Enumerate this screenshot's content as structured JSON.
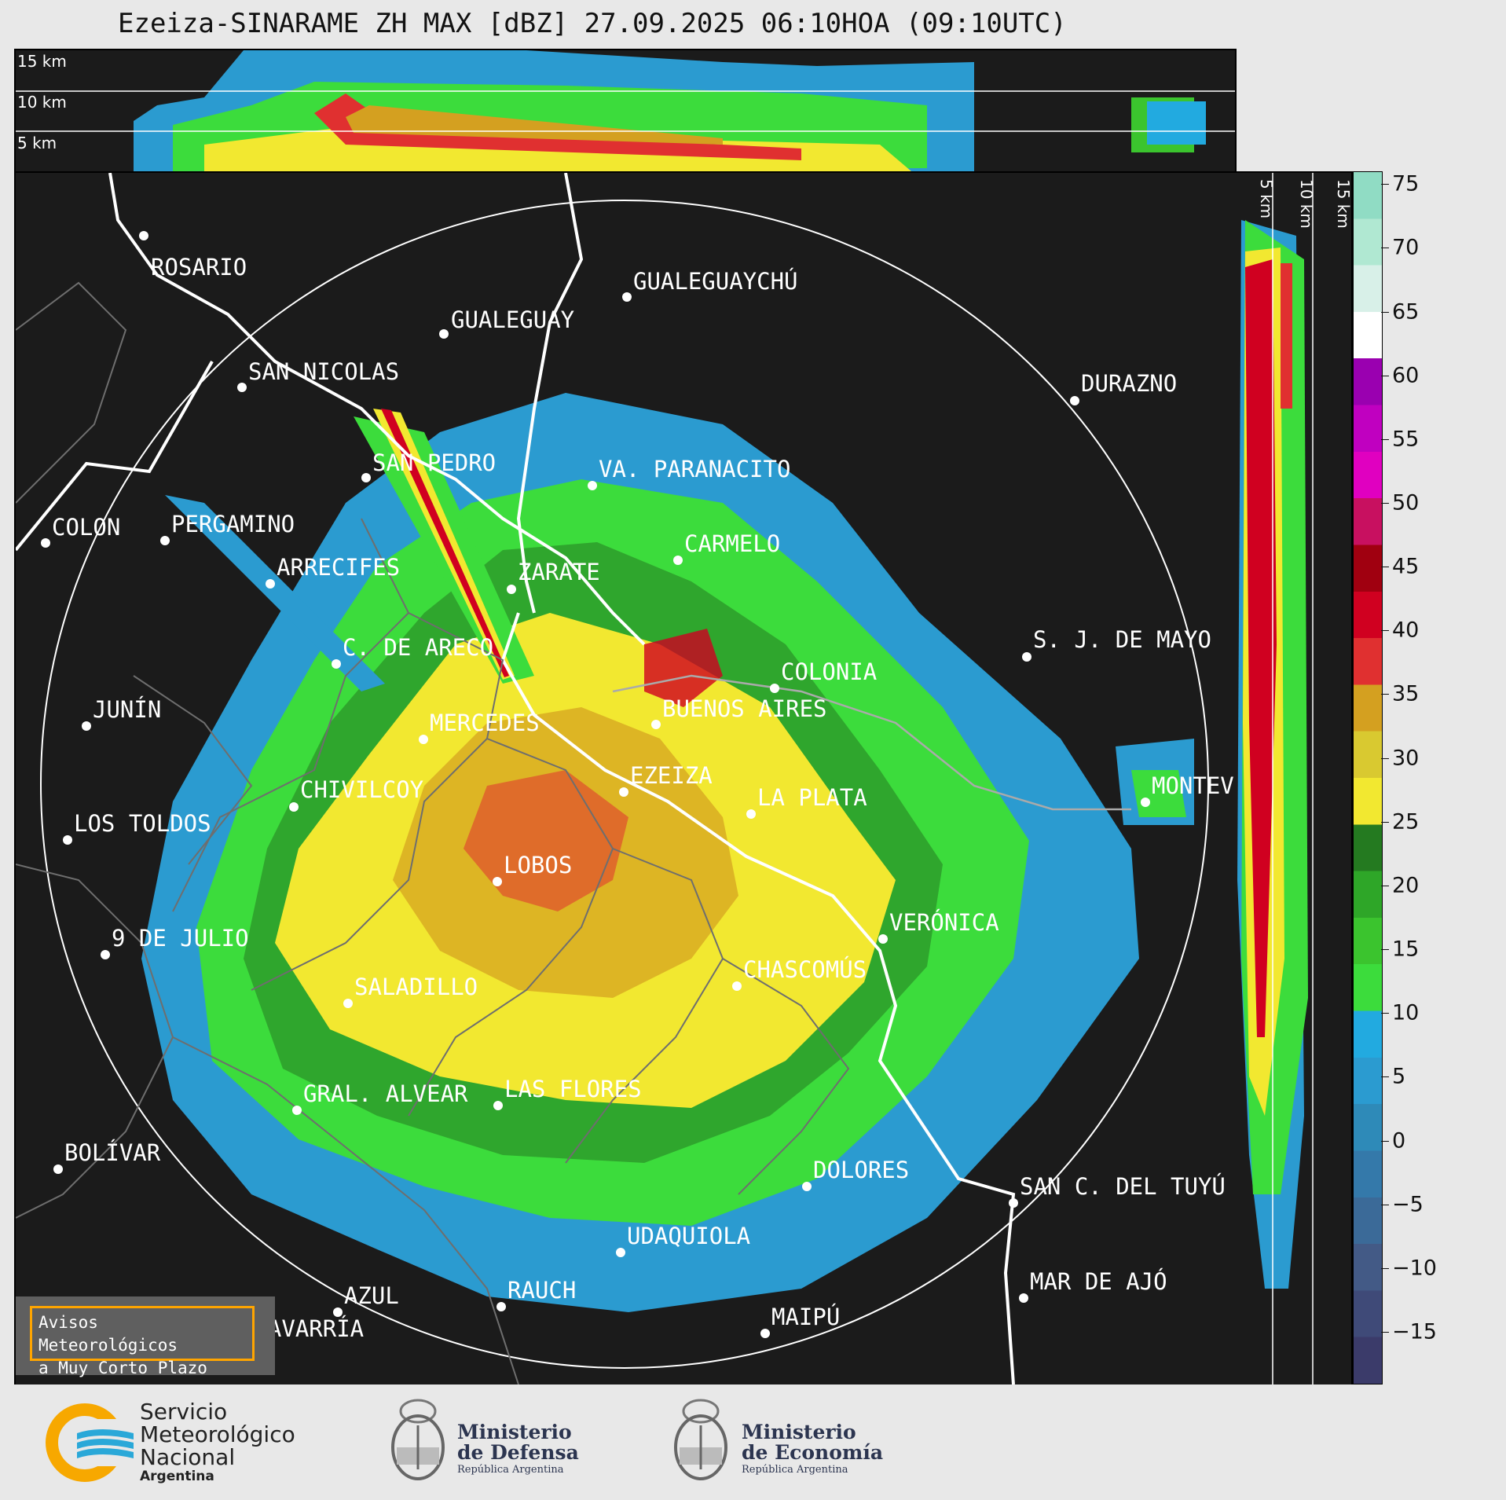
{
  "title": "Ezeiza-SINARAME ZH MAX [dBZ] 27.09.2025 06:10HOA (09:10UTC)",
  "top_panel": {
    "altitude_labels": [
      "15 km",
      "10 km",
      "5 km"
    ]
  },
  "side_panel": {
    "altitude_labels": [
      "5 km",
      "10 km",
      "15 km"
    ]
  },
  "colorbar": {
    "unit": "dBZ",
    "ticks": [
      "75",
      "70",
      "65",
      "60",
      "55",
      "50",
      "45",
      "40",
      "35",
      "30",
      "25",
      "20",
      "15",
      "10",
      "5",
      "0",
      "−5",
      "−10",
      "−15"
    ],
    "range": [
      -19,
      76
    ],
    "colors": [
      "#3b3b6a",
      "#3f4a78",
      "#435a86",
      "#3b6a98",
      "#3479aa",
      "#2e8ab8",
      "#2b9bd0",
      "#22aae0",
      "#3cdc3c",
      "#3bc42e",
      "#2ea628",
      "#247a20",
      "#f2e830",
      "#d9c930",
      "#d4a020",
      "#e03030",
      "#d00020",
      "#a00010",
      "#c81060",
      "#e000c0",
      "#c000c0",
      "#9a00b0",
      "#ffffff",
      "#d8f0e8",
      "#b0e8d2",
      "#90dcc4"
    ]
  },
  "cities": [
    {
      "name": "ROSARIO"
    },
    {
      "name": "GUALEGUAYCHÚ"
    },
    {
      "name": "GUALEGUAY"
    },
    {
      "name": "SAN NICOLAS"
    },
    {
      "name": "DURAZNO"
    },
    {
      "name": "SAN PEDRO"
    },
    {
      "name": "VA. PARANACITO"
    },
    {
      "name": "COLON"
    },
    {
      "name": "PERGAMINO"
    },
    {
      "name": "CARMELO"
    },
    {
      "name": "ARRECIFES"
    },
    {
      "name": "ZARATE"
    },
    {
      "name": "S. J. DE MAYO"
    },
    {
      "name": "C. DE ARECO"
    },
    {
      "name": "COLONIA"
    },
    {
      "name": "JUNÍN"
    },
    {
      "name": "BUENOS AIRES"
    },
    {
      "name": "MERCEDES"
    },
    {
      "name": "EZEIZA"
    },
    {
      "name": "MONTEVIDEO"
    },
    {
      "name": "CHIVILCOY"
    },
    {
      "name": "LA PLATA"
    },
    {
      "name": "LOS TOLDOS"
    },
    {
      "name": "LOBOS"
    },
    {
      "name": "VERÓNICA"
    },
    {
      "name": "9 DE JULIO"
    },
    {
      "name": "CHASCOMÚS"
    },
    {
      "name": "SALADILLO"
    },
    {
      "name": "GRAL. ALVEAR"
    },
    {
      "name": "LAS FLORES"
    },
    {
      "name": "BOLÍVAR"
    },
    {
      "name": "DOLORES"
    },
    {
      "name": "SAN C. DEL TUYÚ"
    },
    {
      "name": "UDAQUIOLA"
    },
    {
      "name": "MAR DE AJÓ"
    },
    {
      "name": "AZUL"
    },
    {
      "name": "RAUCH"
    },
    {
      "name": "OLAVARRÍA"
    },
    {
      "name": "MAIPÚ"
    }
  ],
  "warning_box": {
    "line1": "Avisos Meteorológicos",
    "line2": "a Muy Corto Plazo"
  },
  "logos": {
    "smn": {
      "line1": "Servicio",
      "line2": "Meteorológico",
      "line3": "Nacional",
      "line4": "Argentina"
    },
    "defensa": {
      "line1": "Ministerio",
      "line2": "de Defensa",
      "line3": "República Argentina"
    },
    "economia": {
      "line1": "Ministerio",
      "line2": "de Economía",
      "line3": "República Argentina"
    }
  }
}
